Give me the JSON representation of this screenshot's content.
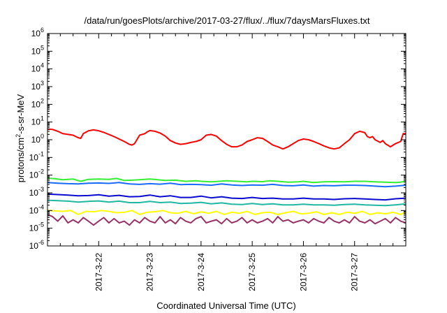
{
  "chart_data": {
    "type": "line",
    "title": "/data/run/goesPlots/archive/2017-03-27/flux/../flux/7daysMarsFluxes.txt",
    "xlabel": "Coordinated Universal Time (UTC)",
    "ylabel": "protons/cm²-s-sr-MeV",
    "yscale": "log",
    "ylim": [
      1e-06,
      1000000.0
    ],
    "xlim": [
      0,
      7
    ],
    "x_unit": "days after 2017-03-21 00:00 UTC",
    "y_ticks": [
      {
        "mant": "10",
        "exp": "-6"
      },
      {
        "mant": "10",
        "exp": "-5"
      },
      {
        "mant": "10",
        "exp": "-4"
      },
      {
        "mant": "10",
        "exp": "-3"
      },
      {
        "mant": "10",
        "exp": "-2"
      },
      {
        "mant": "10",
        "exp": "-1"
      },
      {
        "mant": "10",
        "exp": "0"
      },
      {
        "mant": "10",
        "exp": "1"
      },
      {
        "mant": "10",
        "exp": "2"
      },
      {
        "mant": "10",
        "exp": "3"
      },
      {
        "mant": "10",
        "exp": "4"
      },
      {
        "mant": "10",
        "exp": "5"
      },
      {
        "mant": "10",
        "exp": "6"
      }
    ],
    "x_ticks": [
      {
        "x": 1,
        "label": "2017-3-22"
      },
      {
        "x": 2,
        "label": "2017-3-23"
      },
      {
        "x": 3,
        "label": "2017-3-24"
      },
      {
        "x": 4,
        "label": "2017-3-25"
      },
      {
        "x": 5,
        "label": "2017-3-26"
      },
      {
        "x": 6,
        "label": "2017-3-27"
      }
    ],
    "grid": false,
    "legend": "none",
    "series": [
      {
        "color": "#ff0000",
        "x": [
          0,
          0.1,
          0.2,
          0.3,
          0.4,
          0.5,
          0.6,
          0.65,
          0.7,
          0.8,
          0.9,
          1.0,
          1.1,
          1.2,
          1.3,
          1.4,
          1.5,
          1.6,
          1.65,
          1.7,
          1.8,
          1.9,
          1.95,
          2.0,
          2.1,
          2.2,
          2.3,
          2.4,
          2.5,
          2.6,
          2.7,
          2.8,
          2.9,
          3.0,
          3.1,
          3.2,
          3.3,
          3.4,
          3.5,
          3.6,
          3.7,
          3.8,
          3.9,
          4.0,
          4.1,
          4.2,
          4.3,
          4.4,
          4.5,
          4.6,
          4.7,
          4.8,
          4.9,
          5.0,
          5.1,
          5.2,
          5.3,
          5.4,
          5.5,
          5.6,
          5.7,
          5.8,
          5.9,
          6.0,
          6.1,
          6.2,
          6.25,
          6.3,
          6.35,
          6.4,
          6.5,
          6.55,
          6.6,
          6.7,
          6.8,
          6.9,
          6.95,
          7.0
        ],
        "values": [
          4.0,
          3.8,
          3.0,
          2.2,
          2.0,
          1.8,
          1.3,
          1.2,
          2.2,
          3.2,
          3.6,
          3.2,
          2.6,
          2.0,
          1.5,
          1.1,
          0.8,
          0.55,
          0.5,
          0.6,
          1.8,
          2.2,
          2.8,
          3.3,
          3.0,
          2.4,
          1.6,
          0.9,
          0.65,
          0.55,
          0.6,
          0.7,
          0.8,
          1.0,
          1.8,
          2.0,
          1.6,
          0.9,
          0.55,
          0.4,
          0.4,
          0.5,
          0.8,
          1.0,
          1.3,
          1.2,
          0.8,
          0.5,
          0.4,
          0.3,
          0.4,
          0.6,
          0.9,
          1.1,
          1.0,
          0.8,
          0.6,
          0.45,
          0.35,
          0.3,
          0.35,
          0.6,
          1.0,
          2.2,
          3.0,
          2.5,
          1.5,
          1.3,
          1.5,
          1.0,
          0.7,
          0.9,
          0.6,
          0.4,
          0.6,
          0.8,
          2.2,
          2.2
        ]
      },
      {
        "color": "#33ee33",
        "x": [
          0,
          0.15,
          0.3,
          0.5,
          0.65,
          0.8,
          1.0,
          1.2,
          1.35,
          1.5,
          1.65,
          1.8,
          2.0,
          2.15,
          2.3,
          2.5,
          2.7,
          2.9,
          3.0,
          3.2,
          3.35,
          3.5,
          3.7,
          3.9,
          4.0,
          4.2,
          4.35,
          4.5,
          4.7,
          4.9,
          5.0,
          5.2,
          5.4,
          5.6,
          5.8,
          6.0,
          6.2,
          6.4,
          6.6,
          6.8,
          6.9,
          7.0
        ],
        "values": [
          0.0068,
          0.0062,
          0.0055,
          0.006,
          0.0045,
          0.0058,
          0.006,
          0.0058,
          0.0065,
          0.005,
          0.0052,
          0.0055,
          0.006,
          0.0055,
          0.005,
          0.0052,
          0.0045,
          0.0048,
          0.0045,
          0.0042,
          0.0045,
          0.0048,
          0.0045,
          0.0042,
          0.0045,
          0.0043,
          0.0048,
          0.0045,
          0.004,
          0.0042,
          0.0045,
          0.0038,
          0.0042,
          0.0043,
          0.0042,
          0.0045,
          0.0045,
          0.0042,
          0.004,
          0.0038,
          0.004,
          0.0045
        ]
      },
      {
        "color": "#1a6bff",
        "x": [
          0,
          0.2,
          0.4,
          0.6,
          0.8,
          1.0,
          1.2,
          1.4,
          1.6,
          1.8,
          2.0,
          2.2,
          2.4,
          2.6,
          2.8,
          3.0,
          3.2,
          3.4,
          3.6,
          3.8,
          4.0,
          4.2,
          4.4,
          4.6,
          4.8,
          5.0,
          5.2,
          5.4,
          5.6,
          5.8,
          6.0,
          6.2,
          6.4,
          6.6,
          6.8,
          7.0
        ],
        "values": [
          0.0038,
          0.0035,
          0.0033,
          0.0032,
          0.0035,
          0.0036,
          0.0034,
          0.0038,
          0.0032,
          0.003,
          0.0033,
          0.0031,
          0.0035,
          0.0029,
          0.003,
          0.0029,
          0.0027,
          0.0032,
          0.0028,
          0.0026,
          0.0028,
          0.0027,
          0.003,
          0.0026,
          0.0025,
          0.0028,
          0.0024,
          0.0026,
          0.0025,
          0.0027,
          0.0027,
          0.0026,
          0.0024,
          0.0022,
          0.0024,
          0.0027
        ]
      },
      {
        "color": "#0a0ad0",
        "x": [
          0,
          0.2,
          0.4,
          0.6,
          0.8,
          1.0,
          1.2,
          1.4,
          1.6,
          1.8,
          2.0,
          2.2,
          2.4,
          2.6,
          2.8,
          3.0,
          3.2,
          3.4,
          3.6,
          3.8,
          4.0,
          4.2,
          4.4,
          4.6,
          4.8,
          5.0,
          5.2,
          5.4,
          5.6,
          5.8,
          6.0,
          6.2,
          6.4,
          6.6,
          6.8,
          7.0
        ],
        "values": [
          0.00085,
          0.0008,
          0.00075,
          0.00068,
          0.0007,
          0.00078,
          0.00065,
          0.00072,
          0.0006,
          0.00062,
          0.00075,
          0.0006,
          0.00068,
          0.00055,
          0.00055,
          0.00065,
          0.00052,
          0.0006,
          0.0005,
          0.00048,
          0.00055,
          0.00048,
          0.0005,
          0.00045,
          0.00045,
          0.0005,
          0.00045,
          0.00045,
          0.00042,
          0.00046,
          0.00048,
          0.00045,
          0.00042,
          0.0004,
          0.00046,
          0.0005
        ]
      },
      {
        "color": "#20b8a0",
        "x": [
          0,
          0.2,
          0.4,
          0.6,
          0.8,
          1.0,
          1.2,
          1.4,
          1.6,
          1.8,
          2.0,
          2.2,
          2.4,
          2.6,
          2.8,
          3.0,
          3.2,
          3.4,
          3.6,
          3.8,
          4.0,
          4.2,
          4.4,
          4.6,
          4.8,
          5.0,
          5.2,
          5.4,
          5.6,
          5.8,
          6.0,
          6.2,
          6.4,
          6.6,
          6.8,
          7.0
        ],
        "values": [
          0.00038,
          0.00036,
          0.00034,
          0.0003,
          0.00033,
          0.00035,
          0.0003,
          0.00034,
          0.00028,
          0.00028,
          0.00033,
          0.00028,
          0.0003,
          0.00025,
          0.00026,
          0.00029,
          0.00024,
          0.00027,
          0.00023,
          0.00022,
          0.00025,
          0.00022,
          0.00024,
          0.00021,
          0.00021,
          0.00023,
          0.00021,
          0.00021,
          0.0002,
          0.00022,
          0.00023,
          0.00021,
          0.0002,
          0.00019,
          0.00021,
          0.00024
        ]
      },
      {
        "color": "#ffff00",
        "x": [
          0,
          0.15,
          0.3,
          0.45,
          0.6,
          0.75,
          0.9,
          1.05,
          1.2,
          1.35,
          1.5,
          1.65,
          1.8,
          1.95,
          2.1,
          2.25,
          2.4,
          2.55,
          2.7,
          2.85,
          3.0,
          3.15,
          3.3,
          3.45,
          3.6,
          3.75,
          3.9,
          4.05,
          4.2,
          4.35,
          4.5,
          4.65,
          4.8,
          4.95,
          5.1,
          5.25,
          5.4,
          5.55,
          5.7,
          5.85,
          6.0,
          6.15,
          6.3,
          6.45,
          6.6,
          6.75,
          6.9,
          7.0
        ],
        "values": [
          0.0001,
          9.5e-05,
          9e-05,
          0.0001,
          6e-05,
          9e-05,
          8.5e-05,
          0.0001,
          9e-05,
          7.5e-05,
          8e-05,
          0.0001,
          6e-05,
          8e-05,
          8.5e-05,
          0.0001,
          7.5e-05,
          7e-05,
          9e-05,
          6.5e-05,
          8.5e-05,
          7e-05,
          9e-05,
          6e-05,
          8e-05,
          7e-05,
          9e-05,
          6e-05,
          7.5e-05,
          8e-05,
          6e-05,
          7.5e-05,
          9e-05,
          6.5e-05,
          7e-05,
          8.5e-05,
          6e-05,
          7.5e-05,
          6e-05,
          8e-05,
          7e-05,
          9e-05,
          6e-05,
          7.5e-05,
          6.5e-05,
          8e-05,
          6e-05,
          8.5e-05
        ]
      },
      {
        "color": "#993366",
        "x": [
          0,
          0.1,
          0.2,
          0.3,
          0.4,
          0.5,
          0.6,
          0.7,
          0.8,
          0.9,
          1.0,
          1.1,
          1.2,
          1.3,
          1.4,
          1.5,
          1.6,
          1.7,
          1.8,
          1.9,
          2.0,
          2.1,
          2.2,
          2.3,
          2.4,
          2.5,
          2.6,
          2.7,
          2.8,
          2.9,
          3.0,
          3.1,
          3.2,
          3.3,
          3.4,
          3.5,
          3.6,
          3.7,
          3.8,
          3.9,
          4.0,
          4.1,
          4.2,
          4.3,
          4.4,
          4.5,
          4.6,
          4.7,
          4.8,
          4.9,
          5.0,
          5.1,
          5.2,
          5.3,
          5.4,
          5.5,
          5.6,
          5.7,
          5.8,
          5.9,
          6.0,
          6.1,
          6.2,
          6.3,
          6.4,
          6.5,
          6.6,
          6.7,
          6.8,
          6.9,
          7.0
        ],
        "values": [
          6e-05,
          4.5e-05,
          2.5e-05,
          5e-05,
          2e-05,
          3e-05,
          2e-05,
          4e-05,
          2.5e-05,
          1.5e-05,
          2.5e-05,
          4e-05,
          2e-05,
          3.5e-05,
          2e-05,
          2.5e-05,
          1.5e-05,
          3e-05,
          2e-05,
          4e-05,
          2.5e-05,
          2e-05,
          4.5e-05,
          2e-05,
          3e-05,
          1.8e-05,
          4e-05,
          2.5e-05,
          2e-05,
          3.5e-05,
          4.5e-05,
          2e-05,
          2.5e-05,
          3e-05,
          1.8e-05,
          3.5e-05,
          2e-05,
          2.5e-05,
          4e-05,
          2e-05,
          3e-05,
          2e-05,
          2.5e-05,
          3.5e-05,
          2e-05,
          4.5e-05,
          2.5e-05,
          3e-05,
          2e-05,
          2.5e-05,
          3e-05,
          2e-05,
          3.5e-05,
          2.5e-05,
          2e-05,
          4e-05,
          2.5e-05,
          2e-05,
          3e-05,
          2e-05,
          4.5e-05,
          2.5e-05,
          2e-05,
          3e-05,
          1.8e-05,
          2.5e-05,
          3.5e-05,
          2e-05,
          4e-05,
          2.5e-05,
          2e-05
        ]
      }
    ]
  }
}
